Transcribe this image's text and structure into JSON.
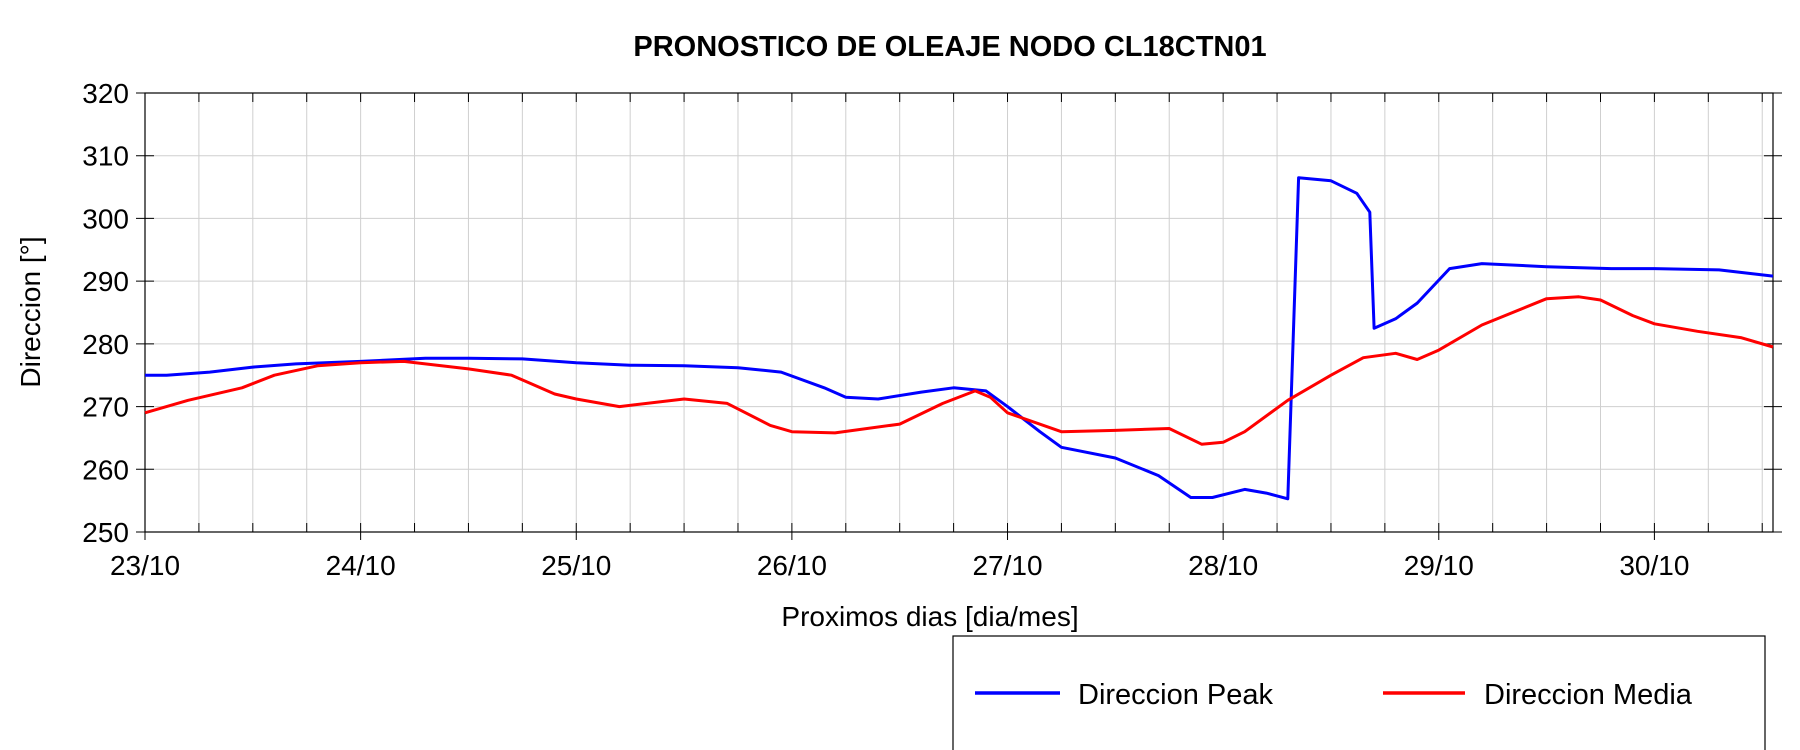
{
  "chart_data": {
    "type": "line",
    "title": "PRONOSTICO DE OLEAJE NODO CL18CTN01",
    "xlabel": "Proximos dias [dia/mes]",
    "ylabel": "Direccion [°]",
    "x_unit": "days",
    "xlim": [
      0,
      7.55
    ],
    "ylim": [
      250,
      320
    ],
    "yticks": [
      250,
      260,
      270,
      280,
      290,
      300,
      310,
      320
    ],
    "xticks": [
      {
        "x": 0,
        "label": "23/10"
      },
      {
        "x": 1,
        "label": "24/10"
      },
      {
        "x": 2,
        "label": "25/10"
      },
      {
        "x": 3,
        "label": "26/10"
      },
      {
        "x": 4,
        "label": "27/10"
      },
      {
        "x": 5,
        "label": "28/10"
      },
      {
        "x": 6,
        "label": "29/10"
      },
      {
        "x": 7,
        "label": "30/10"
      }
    ],
    "grid": true,
    "legend_position": "bottom-right",
    "series": [
      {
        "name": "Direccion Peak",
        "color": "#0000ff",
        "x": [
          0,
          0.1,
          0.3,
          0.5,
          0.7,
          1.0,
          1.3,
          1.5,
          1.75,
          2.0,
          2.25,
          2.5,
          2.75,
          2.95,
          3.15,
          3.25,
          3.4,
          3.6,
          3.75,
          3.9,
          4.0,
          4.15,
          4.25,
          4.5,
          4.7,
          4.85,
          4.95,
          5.1,
          5.2,
          5.3,
          5.35,
          5.5,
          5.62,
          5.68,
          5.7,
          5.8,
          5.9,
          6.05,
          6.2,
          6.5,
          6.8,
          7.0,
          7.3,
          7.55
        ],
        "values": [
          275,
          275,
          275.5,
          276.3,
          276.8,
          277.2,
          277.7,
          277.7,
          277.6,
          277.0,
          276.6,
          276.5,
          276.2,
          275.5,
          273,
          271.5,
          271.2,
          272.3,
          273,
          272.5,
          270,
          266,
          263.5,
          261.8,
          259,
          255.5,
          255.5,
          256.8,
          256.2,
          255.3,
          306.5,
          306,
          304,
          301,
          282.5,
          284,
          286.5,
          292,
          292.8,
          292.3,
          292,
          292,
          291.8,
          290.8
        ]
      },
      {
        "name": "Direccion Media",
        "color": "#ff0000",
        "x": [
          0,
          0.2,
          0.45,
          0.6,
          0.8,
          1.0,
          1.2,
          1.5,
          1.7,
          1.9,
          2.0,
          2.2,
          2.5,
          2.7,
          2.9,
          3.0,
          3.2,
          3.5,
          3.7,
          3.85,
          3.92,
          4.0,
          4.25,
          4.5,
          4.75,
          4.9,
          5.0,
          5.1,
          5.3,
          5.5,
          5.65,
          5.8,
          5.9,
          6.0,
          6.2,
          6.5,
          6.65,
          6.75,
          6.9,
          7.0,
          7.2,
          7.4,
          7.55
        ],
        "values": [
          269,
          271,
          273,
          275,
          276.5,
          277,
          277.2,
          276,
          275,
          272,
          271.2,
          270,
          271.2,
          270.5,
          267,
          266,
          265.8,
          267.2,
          270.5,
          272.5,
          271.5,
          269,
          266,
          266.2,
          266.5,
          264,
          264.3,
          266,
          271,
          275,
          277.8,
          278.5,
          277.5,
          279,
          283,
          287.2,
          287.5,
          287,
          284.5,
          283.2,
          282,
          281,
          279.5
        ]
      }
    ]
  }
}
